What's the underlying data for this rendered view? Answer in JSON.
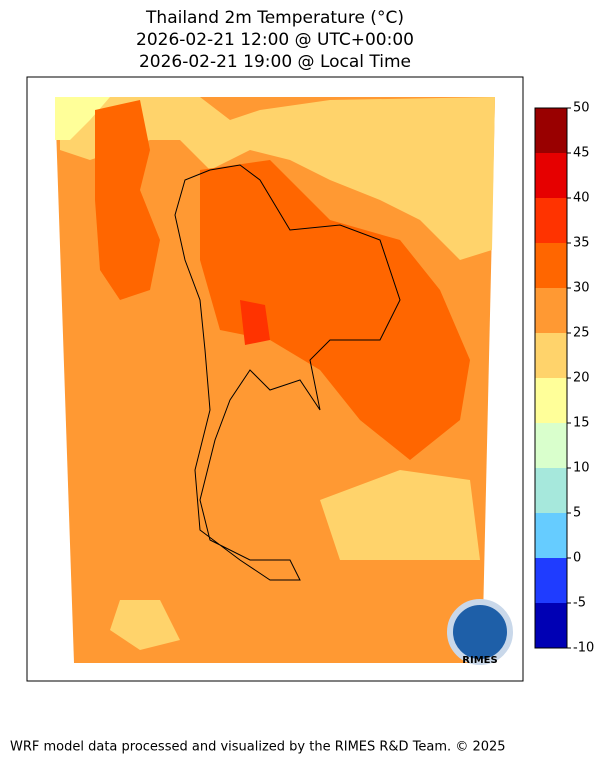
{
  "header": {
    "title_lines": [
      "Thailand 2m Temperature (°C)",
      "2026-02-21 12:00 @ UTC+00:00",
      "2026-02-21 19:00 @ Local Time"
    ]
  },
  "colorbar": {
    "ticks": [
      -10,
      -5,
      0,
      5,
      10,
      15,
      20,
      25,
      30,
      35,
      40,
      45,
      50
    ],
    "colors": [
      "#0000b4",
      "#1f3cff",
      "#66ccff",
      "#a6e8dc",
      "#d9ffcc",
      "#ffff99",
      "#ffd36b",
      "#ff9933",
      "#ff6600",
      "#ff3300",
      "#e60000",
      "#990000"
    ]
  },
  "logo": {
    "label": "RIMES"
  },
  "footer": {
    "credit": "WRF model data processed and visualized by the RIMES R&D Team. © 2025"
  }
}
